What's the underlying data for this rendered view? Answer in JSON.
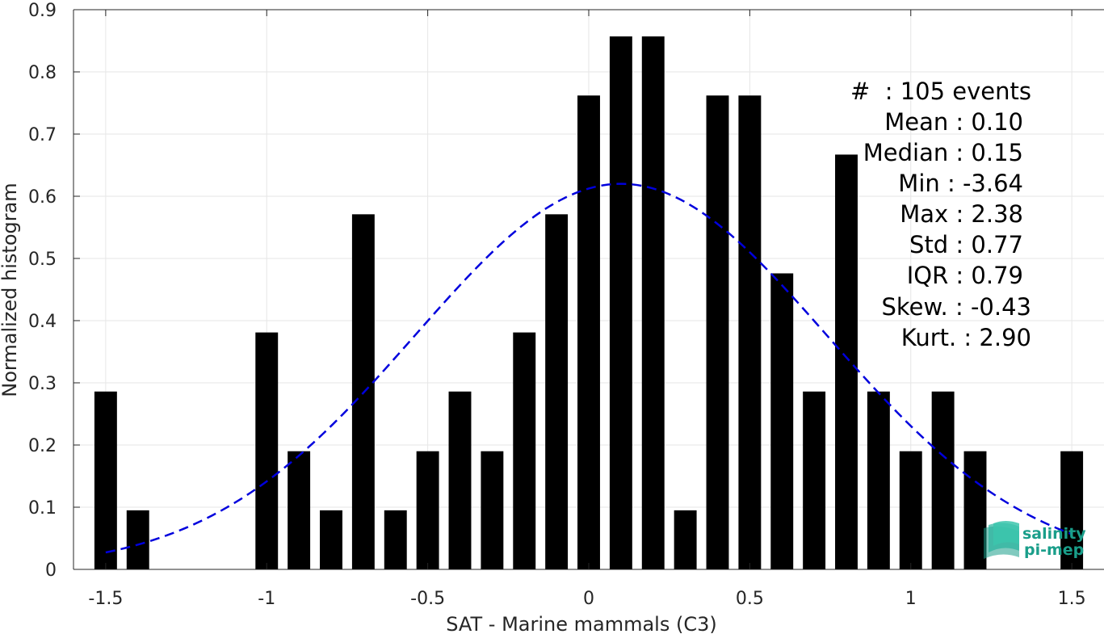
{
  "chart_data": {
    "type": "bar",
    "xlabel": "SAT - Marine mammals (C3)",
    "ylabel": "Normalized histogram",
    "xlim": [
      -1.6,
      1.6
    ],
    "ylim": [
      0,
      0.9
    ],
    "xticks": [
      -1.5,
      -1,
      -0.5,
      0,
      0.5,
      1,
      1.5
    ],
    "xtick_labels": [
      "-1.5",
      "-1",
      "-0.5",
      "0",
      "0.5",
      "1",
      "1.5"
    ],
    "yticks": [
      0,
      0.1,
      0.2,
      0.3,
      0.4,
      0.5,
      0.6,
      0.7,
      0.8,
      0.9
    ],
    "ytick_labels": [
      "0",
      "0.1",
      "0.2",
      "0.3",
      "0.4",
      "0.5",
      "0.6",
      "0.7",
      "0.8",
      "0.9"
    ],
    "grid": true,
    "bar_width": 0.07,
    "bar_color": "#000000",
    "bars": [
      {
        "x": -1.5,
        "y": 0.286
      },
      {
        "x": -1.4,
        "y": 0.095
      },
      {
        "x": -1.0,
        "y": 0.381
      },
      {
        "x": -0.9,
        "y": 0.19
      },
      {
        "x": -0.8,
        "y": 0.095
      },
      {
        "x": -0.7,
        "y": 0.571
      },
      {
        "x": -0.6,
        "y": 0.095
      },
      {
        "x": -0.5,
        "y": 0.19
      },
      {
        "x": -0.4,
        "y": 0.286
      },
      {
        "x": -0.3,
        "y": 0.19
      },
      {
        "x": -0.2,
        "y": 0.381
      },
      {
        "x": -0.1,
        "y": 0.571
      },
      {
        "x": 0.0,
        "y": 0.762
      },
      {
        "x": 0.1,
        "y": 0.857
      },
      {
        "x": 0.2,
        "y": 0.857
      },
      {
        "x": 0.3,
        "y": 0.095
      },
      {
        "x": 0.4,
        "y": 0.762
      },
      {
        "x": 0.5,
        "y": 0.762
      },
      {
        "x": 0.6,
        "y": 0.476
      },
      {
        "x": 0.7,
        "y": 0.286
      },
      {
        "x": 0.8,
        "y": 0.667
      },
      {
        "x": 0.9,
        "y": 0.286
      },
      {
        "x": 1.0,
        "y": 0.19
      },
      {
        "x": 1.1,
        "y": 0.286
      },
      {
        "x": 1.2,
        "y": 0.19
      },
      {
        "x": 1.5,
        "y": 0.19
      }
    ],
    "fit_curve": {
      "type": "gaussian",
      "mean": 0.1,
      "std": 0.64,
      "peak": 0.62,
      "x_range": [
        -1.5,
        1.5
      ],
      "color": "#0000dd",
      "style": "dashed"
    }
  },
  "stats": {
    "count": "#  : 105 events",
    "mean": "Mean : 0.10",
    "median": "Median : 0.15",
    "min": "Min : -3.64",
    "max": "Max : 2.38",
    "std": "Std : 0.77",
    "iqr": "IQR : 0.79",
    "skew": "Skew. : -0.43",
    "kurt": "Kurt. : 2.90"
  },
  "logo": {
    "line1": "salinity",
    "line2": "pi-mep",
    "color": "#1a9e8a"
  }
}
